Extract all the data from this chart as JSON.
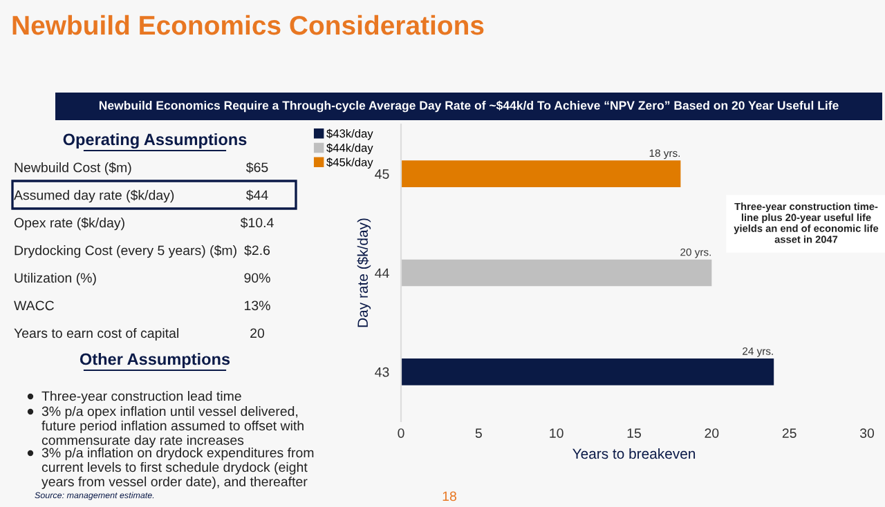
{
  "chart_data": [
    {
      "type": "other",
      "title": "Newbuild Economics Considerations",
      "subtitle": "Newbuild Economics Require a Through-cycle Average Day Rate of ~$44k/d To Achieve “NPV Zero” Based on 20 Year Useful Life",
      "annotations": [
        "Operating Assumptions",
        "Newbuild Cost ($m)",
        "$65",
        "Assumed day rate ($k/day)",
        "$44",
        "Opex rate ($k/day)",
        "$10.4",
        "Drydocking Cost (every 5 years) ($m)",
        "$2.6",
        "Utilization (%)",
        "90%",
        "WACC",
        "13%",
        "Years to earn cost of capital",
        "20",
        "Other Assumptions",
        "Three-year construction lead time",
        "3% p/a opex inflation until vessel delivered,\nfuture period inflation assumed to offset with\ncommensurate day rate increases",
        "3% p/a inflation on drydock expenditures from\ncurrent levels to first schedule drydock (eight\nyears from vessel order date), and thereafter",
        "Source: management estimate.",
        "18"
      ]
    },
    {
      "type": "bar",
      "orientation": "horizontal",
      "categories": [
        "45",
        "44",
        "43"
      ],
      "series": [
        {
          "name": "$43k/day",
          "color": "#0a1a45",
          "values": [
            null,
            null,
            24
          ],
          "value_labels": [
            null,
            null,
            "24 yrs."
          ]
        },
        {
          "name": "$44k/day",
          "color": "#bfbfbf",
          "values": [
            null,
            20,
            null
          ],
          "value_labels": [
            null,
            "20 yrs.",
            null
          ]
        },
        {
          "name": "$45k/day",
          "color": "#e07b00",
          "values": [
            18,
            null,
            null
          ],
          "value_labels": [
            "18 yrs.",
            null,
            null
          ]
        }
      ],
      "xlim": [
        0,
        30
      ],
      "xticks": [
        0,
        5,
        10,
        15,
        20,
        25,
        30
      ],
      "xlabel": "Years to breakeven",
      "ylabel": "Day rate ($k/day)",
      "legend": "top left",
      "annotations": [
        "Three-year construction time-\nline plus 20-year useful life\nyields an end of economic life\nasset in 2047"
      ]
    }
  ]
}
